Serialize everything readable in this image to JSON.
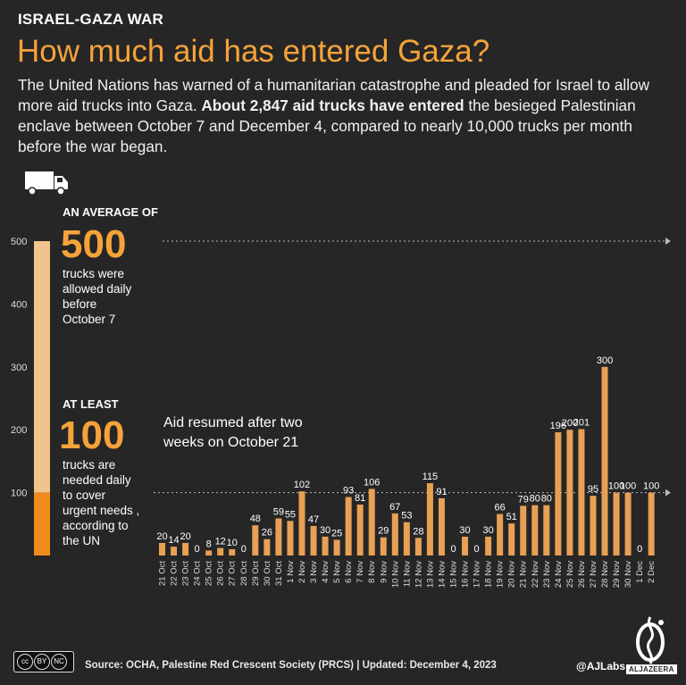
{
  "header": {
    "kicker": "ISRAEL-GAZA WAR",
    "title": "How much aid has entered Gaza?",
    "intro_1": "The United Nations has warned of a humanitarian catastrophe and pleaded for Israel to allow more aid trucks into Gaza. ",
    "intro_bold": "About 2,847 aid trucks have entered",
    "intro_2": " the besieged Palestinian enclave between October 7 and December 4, compared to nearly 10,000 trucks per month before the war began."
  },
  "colors": {
    "accent": "#f5a33a",
    "bar": "#e8a055",
    "pre_war_bar": "#f0c48a",
    "needed_bar": "#f08c1e",
    "background": "#262626"
  },
  "icons": {
    "truck": "truck-icon"
  },
  "side": {
    "avg_caption": "AN AVERAGE OF",
    "avg_value": "500",
    "avg_desc_1": "trucks were",
    "avg_desc_2": "allowed daily",
    "avg_desc_3": "before",
    "avg_desc_4": "October 7",
    "least_caption": "AT LEAST",
    "least_value": "100",
    "least_desc_1": "trucks are",
    "least_desc_2": "needed daily",
    "least_desc_3": "to cover",
    "least_desc_4": "urgent needs ,",
    "least_desc_5": "according to",
    "least_desc_6": "the UN"
  },
  "annotation": {
    "line1": "Aid resumed after two",
    "line2": "weeks on October 21"
  },
  "chart_data": {
    "type": "bar",
    "ylim": [
      0,
      500
    ],
    "yticks": [
      100,
      200,
      300,
      400,
      500
    ],
    "reference_lines": [
      500,
      100
    ],
    "pre_war_daily_average": 500,
    "needed_daily_minimum": 100,
    "categories": [
      "21 Oct",
      "22 Oct",
      "23 Oct",
      "24 Oct",
      "25 Oct",
      "26 Oct",
      "27 Oct",
      "28 Oct",
      "29 Oct",
      "30 Oct",
      "31 Oct",
      "1 Nov",
      "2 Nov",
      "3 Nov",
      "4 Nov",
      "5 Nov",
      "6 Nov",
      "7 Nov",
      "8 Nov",
      "9 Nov",
      "10 Nov",
      "11 Nov",
      "12 Nov",
      "13 Nov",
      "14 Nov",
      "15 Nov",
      "16 Nov",
      "17 Nov",
      "18 Nov",
      "19 Nov",
      "20 Nov",
      "21 Nov",
      "22 Nov",
      "23 Nov",
      "24 Nov",
      "25 Nov",
      "26 Nov",
      "27 Nov",
      "28 Nov",
      "29 Nov",
      "30 Nov",
      "1 Dec",
      "2 Dec"
    ],
    "values": [
      20,
      14,
      20,
      0,
      8,
      12,
      10,
      0,
      48,
      26,
      59,
      55,
      102,
      47,
      30,
      25,
      93,
      81,
      106,
      29,
      67,
      53,
      28,
      115,
      91,
      0,
      30,
      0,
      30,
      66,
      51,
      79,
      80,
      80,
      196,
      200,
      201,
      95,
      300,
      100,
      100,
      0,
      100
    ]
  },
  "footer": {
    "source": "Source:  OCHA, Palestine Red Crescent Society (PRCS)   |   Updated: December 4, 2023",
    "handle": "@AJLabs",
    "brand": "ALJAZEERA",
    "license_by": "BY",
    "license_nc": "NC",
    "license_sa": "SA"
  }
}
